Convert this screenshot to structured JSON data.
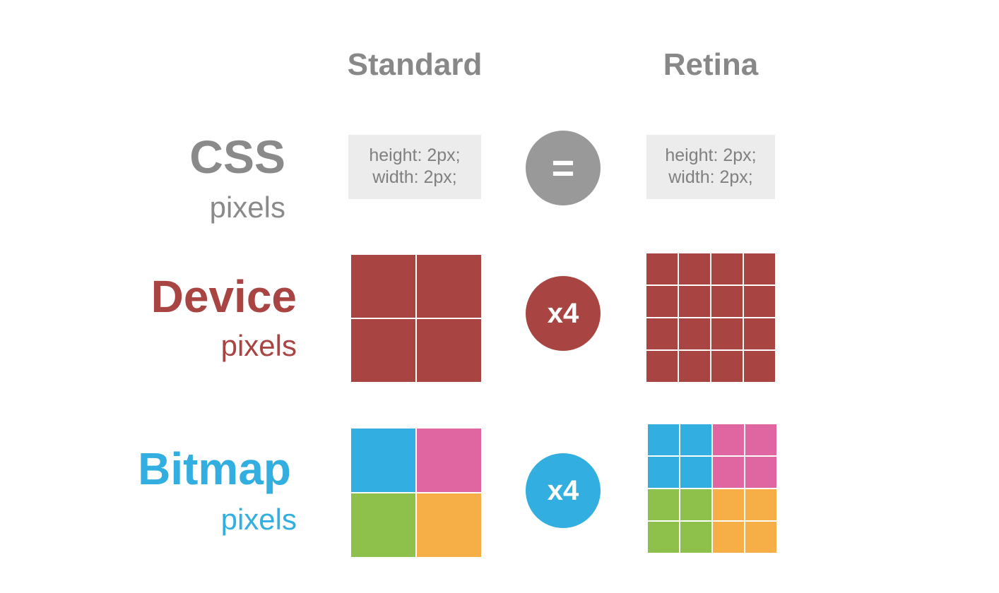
{
  "columns": {
    "standard": "Standard",
    "retina": "Retina"
  },
  "rows": {
    "css": {
      "title": "CSS",
      "subtitle": "pixels",
      "color": "#8a8a8a"
    },
    "device": {
      "title": "Device",
      "subtitle": "pixels",
      "color": "#a84543"
    },
    "bitmap": {
      "title": "Bitmap",
      "subtitle": "pixels",
      "color": "#33aee0"
    }
  },
  "css_code": {
    "standard": {
      "line1": "height: 2px;",
      "line2": "width: 2px;"
    },
    "retina": {
      "line1": "height: 2px;",
      "line2": "width: 2px;"
    }
  },
  "operators": {
    "css": "=",
    "device": "x4",
    "bitmap": "x4"
  },
  "colors": {
    "device": "#a84543",
    "bitmap_blue": "#33aee0",
    "bitmap_pink": "#df66a1",
    "bitmap_green": "#8dc14b",
    "bitmap_orange": "#f6ae47",
    "code_bg": "#ececec",
    "equals_circle": "#999999"
  },
  "grids": {
    "device_standard": {
      "cols": 2,
      "rows": 2,
      "cells": [
        "device",
        "device",
        "device",
        "device"
      ]
    },
    "device_retina": {
      "cols": 4,
      "rows": 4,
      "cells": [
        "device",
        "device",
        "device",
        "device",
        "device",
        "device",
        "device",
        "device",
        "device",
        "device",
        "device",
        "device",
        "device",
        "device",
        "device",
        "device"
      ]
    },
    "bitmap_standard": {
      "cols": 2,
      "rows": 2,
      "cells": [
        "bitmap_blue",
        "bitmap_pink",
        "bitmap_green",
        "bitmap_orange"
      ]
    },
    "bitmap_retina": {
      "cols": 4,
      "rows": 4,
      "cells": [
        "bitmap_blue",
        "bitmap_blue",
        "bitmap_pink",
        "bitmap_pink",
        "bitmap_blue",
        "bitmap_blue",
        "bitmap_pink",
        "bitmap_pink",
        "bitmap_green",
        "bitmap_green",
        "bitmap_orange",
        "bitmap_orange",
        "bitmap_green",
        "bitmap_green",
        "bitmap_orange",
        "bitmap_orange"
      ]
    }
  }
}
